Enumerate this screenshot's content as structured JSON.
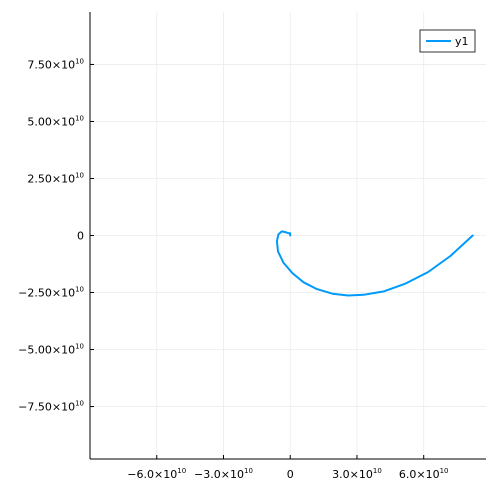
{
  "chart_data": {
    "type": "line",
    "title": "",
    "xlabel": "",
    "ylabel": "",
    "xlim": [
      -90000000000,
      88000000000
    ],
    "ylim": [
      -98000000000,
      98000000000
    ],
    "grid": true,
    "legend_position": "top-right",
    "colors": {
      "series": "#009AFA",
      "grid": "#EBEBEB",
      "axis": "#000000"
    },
    "x_ticks": [
      {
        "value": -60000000000,
        "mantissa": "−6.0×10",
        "exp": "10"
      },
      {
        "value": -30000000000,
        "mantissa": "−3.0×10",
        "exp": "10"
      },
      {
        "value": 0,
        "mantissa": "0",
        "exp": ""
      },
      {
        "value": 30000000000,
        "mantissa": "3.0×10",
        "exp": "10"
      },
      {
        "value": 60000000000,
        "mantissa": "6.0×10",
        "exp": "10"
      }
    ],
    "y_ticks": [
      {
        "value": 75000000000,
        "mantissa": "7.50×10",
        "exp": "10"
      },
      {
        "value": 50000000000,
        "mantissa": "5.00×10",
        "exp": "10"
      },
      {
        "value": 25000000000,
        "mantissa": "2.50×10",
        "exp": "10"
      },
      {
        "value": 0,
        "mantissa": "0",
        "exp": ""
      },
      {
        "value": -25000000000,
        "mantissa": "−2.50×10",
        "exp": "10"
      },
      {
        "value": -50000000000,
        "mantissa": "−5.00×10",
        "exp": "10"
      },
      {
        "value": -75000000000,
        "mantissa": "−7.50×10",
        "exp": "10"
      }
    ],
    "series": [
      {
        "name": "y1",
        "x": [
          82000000000,
          72000000000,
          62000000000,
          52000000000,
          42000000000,
          33000000000,
          26000000000,
          19000000000,
          12000000000,
          6000000000,
          1000000000,
          -3000000000,
          -5500000000,
          -6000000000,
          -5300000000,
          -3800000000,
          -2200000000,
          -800000000,
          0,
          0
        ],
        "y": [
          0,
          -9000000000,
          -16000000000,
          -21000000000,
          -24500000000,
          -26000000000,
          -26300000000,
          -25500000000,
          -23500000000,
          -20500000000,
          -16500000000,
          -12000000000,
          -7000000000,
          -2500000000,
          500000000,
          1800000000,
          1500000000,
          1000000000,
          1000000000,
          0
        ]
      }
    ]
  }
}
